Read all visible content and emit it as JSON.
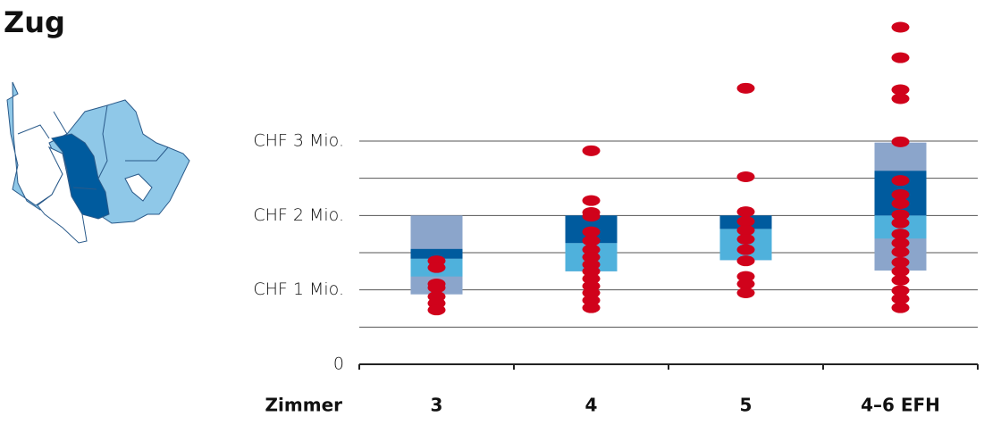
{
  "chart_data": {
    "type": "range-dots",
    "title": "Zug",
    "x_label": "Zimmer",
    "categories": [
      "3",
      "4",
      "5",
      "4–6 EFH"
    ],
    "ylim": [
      0,
      4.8
    ],
    "yticks": [
      {
        "value": 0,
        "label": "0"
      },
      {
        "value": 1,
        "label": "CHF 1 Mio."
      },
      {
        "value": 2,
        "label": "CHF 2 Mio."
      },
      {
        "value": 3,
        "label": "CHF 3 Mio."
      }
    ],
    "minor_grid": [
      0.5,
      1.5,
      2.5
    ],
    "grid": true,
    "layers": [
      {
        "color": "#8ba5cb",
        "values": [
          [
            0.94,
            2.0
          ],
          [
            1.25,
            2.0
          ],
          [
            1.4,
            2.0
          ],
          [
            1.26,
            2.98
          ]
        ]
      },
      {
        "color": "#4fb1dc",
        "values": [
          [
            1.18,
            1.42
          ],
          [
            1.25,
            1.63
          ],
          [
            1.4,
            1.82
          ],
          [
            1.69,
            2.0
          ]
        ]
      },
      {
        "color": "#005b9e",
        "values": [
          [
            1.42,
            1.55
          ],
          [
            1.63,
            2.0
          ],
          [
            1.82,
            2.0
          ],
          [
            2.0,
            2.6
          ]
        ]
      }
    ],
    "points": {
      "color": "#d0021b",
      "values": [
        [
          1.39,
          1.3,
          1.08,
          1.03,
          0.91,
          0.82,
          0.73
        ],
        [
          2.87,
          2.2,
          2.04,
          1.99,
          1.78,
          1.66,
          1.54,
          1.44,
          1.34,
          1.25,
          1.15,
          1.05,
          0.96,
          0.86,
          0.76
        ],
        [
          3.71,
          2.52,
          2.05,
          1.92,
          1.8,
          1.68,
          1.54,
          1.39,
          1.18,
          1.08,
          0.96
        ],
        [
          4.53,
          4.12,
          3.69,
          3.57,
          2.99,
          2.47,
          2.28,
          2.16,
          2.01,
          1.9,
          1.75,
          1.63,
          1.51,
          1.37,
          1.25,
          1.13,
          0.99,
          0.88,
          0.76
        ]
      ]
    }
  }
}
